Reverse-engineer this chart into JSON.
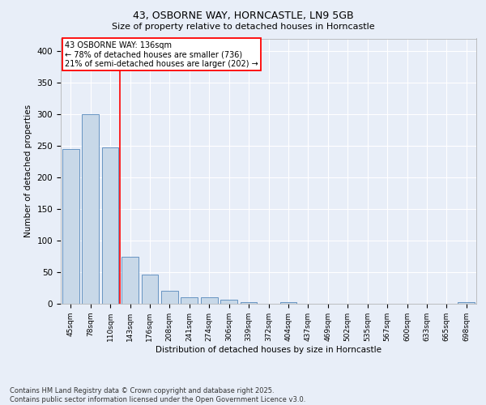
{
  "title1": "43, OSBORNE WAY, HORNCASTLE, LN9 5GB",
  "title2": "Size of property relative to detached houses in Horncastle",
  "xlabel": "Distribution of detached houses by size in Horncastle",
  "ylabel": "Number of detached properties",
  "categories": [
    "45sqm",
    "78sqm",
    "110sqm",
    "143sqm",
    "176sqm",
    "208sqm",
    "241sqm",
    "274sqm",
    "306sqm",
    "339sqm",
    "372sqm",
    "404sqm",
    "437sqm",
    "469sqm",
    "502sqm",
    "535sqm",
    "567sqm",
    "600sqm",
    "633sqm",
    "665sqm",
    "698sqm"
  ],
  "values": [
    245,
    300,
    248,
    75,
    46,
    21,
    10,
    10,
    6,
    3,
    0,
    3,
    0,
    0,
    0,
    0,
    0,
    0,
    0,
    0,
    3
  ],
  "bar_color": "#c8d8e8",
  "bar_edge_color": "#5588bb",
  "vline_x_index": 2.5,
  "vline_color": "red",
  "annotation_text": "43 OSBORNE WAY: 136sqm\n← 78% of detached houses are smaller (736)\n21% of semi-detached houses are larger (202) →",
  "annotation_box_color": "white",
  "annotation_box_edge_color": "red",
  "footer_text": "Contains HM Land Registry data © Crown copyright and database right 2025.\nContains public sector information licensed under the Open Government Licence v3.0.",
  "ylim": [
    0,
    420
  ],
  "yticks": [
    0,
    50,
    100,
    150,
    200,
    250,
    300,
    350,
    400
  ],
  "background_color": "#e8eef8",
  "plot_background": "#e8eef8"
}
